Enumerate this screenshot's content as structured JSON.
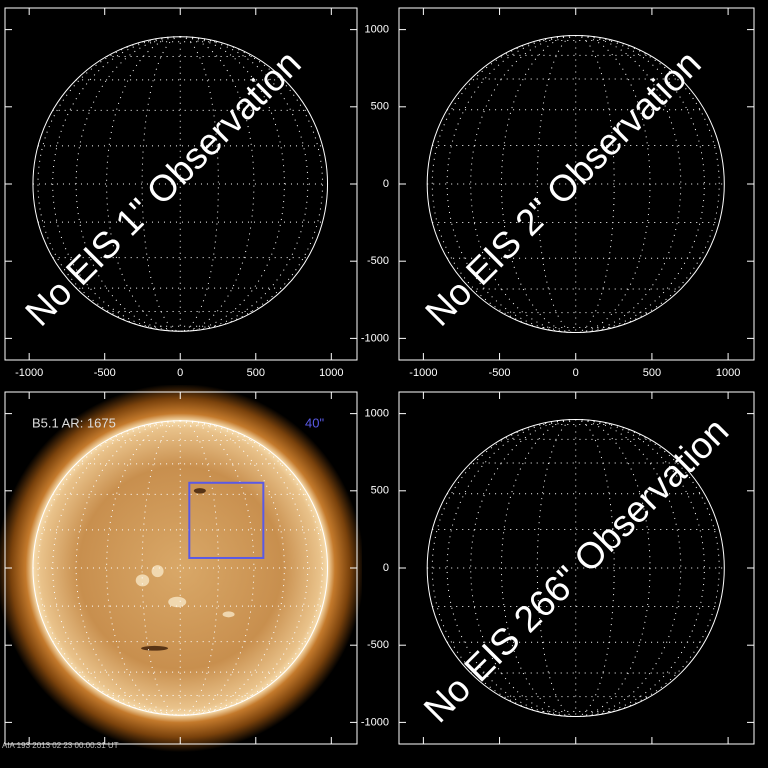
{
  "chart_data": [
    {
      "type": "disk",
      "annotation": "No EIS 1\" Observation",
      "xlim": [
        -1160,
        1170
      ],
      "ylim": [
        -1140,
        1140
      ],
      "xticks": [
        -1000,
        -500,
        0,
        500,
        1000
      ],
      "yticks": [
        -1000,
        -500,
        0,
        500,
        1000
      ],
      "solar_radius": 975,
      "tick_labels": [
        "x"
      ]
    },
    {
      "type": "disk",
      "annotation": "No EIS 2\" Observation",
      "xlim": [
        -1160,
        1170
      ],
      "ylim": [
        -1140,
        1140
      ],
      "xticks": [
        -1000,
        -500,
        0,
        500,
        1000
      ],
      "yticks": [
        -1000,
        -500,
        0,
        500,
        1000
      ],
      "solar_radius": 975,
      "tick_labels": [
        "x",
        "y"
      ]
    },
    {
      "type": "image",
      "label": "B5.1 AR: 1675",
      "fov_label": "40\"",
      "footer": "AIA 193   2013 02 23  00:00:31 UT",
      "xlim": [
        -1160,
        1170
      ],
      "ylim": [
        -1140,
        1140
      ],
      "xticks": [
        -1000,
        -500,
        0,
        500,
        1000
      ],
      "yticks": [
        -1000,
        -500,
        0,
        500,
        1000
      ],
      "solar_radius": 975,
      "fov": {
        "x": [
          60,
          550
        ],
        "y": [
          65,
          552
        ],
        "color": "#5a5ae6"
      },
      "tick_labels": []
    },
    {
      "type": "disk",
      "annotation": "No EIS 266\" Observation",
      "xlim": [
        -1160,
        1170
      ],
      "ylim": [
        -1140,
        1140
      ],
      "xticks": [
        -1000,
        -500,
        0,
        500,
        1000
      ],
      "yticks": [
        -1000,
        -500,
        0,
        500,
        1000
      ],
      "solar_radius": 975,
      "tick_labels": [
        "y"
      ]
    }
  ]
}
